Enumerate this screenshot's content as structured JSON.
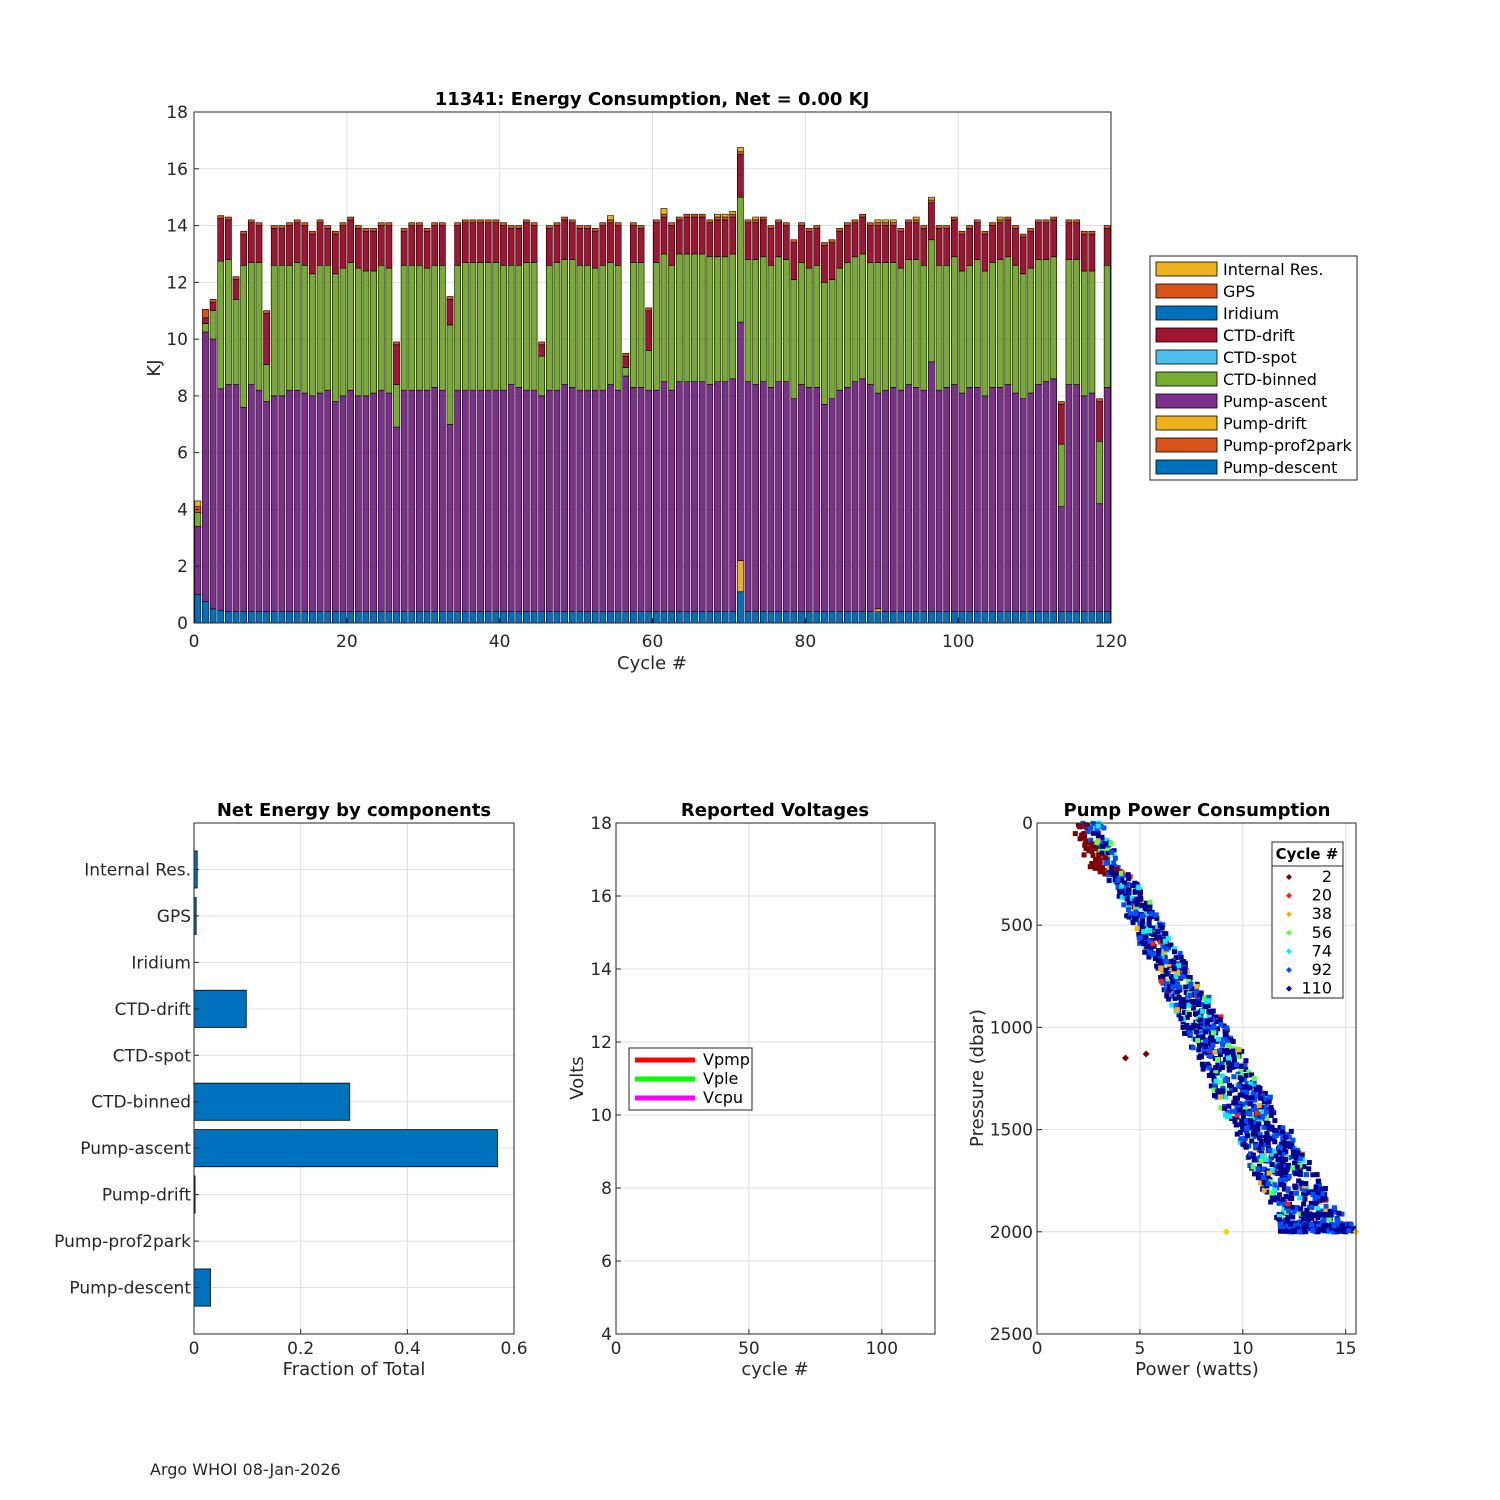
{
  "footer": "Argo WHOI 08-Jan-2026",
  "chart_data": [
    {
      "id": "energy",
      "type": "bar",
      "stacked": true,
      "title": "11341: Energy Consumption,  Net =   0.00 KJ",
      "xlabel": "Cycle #",
      "ylabel": "KJ",
      "xlim": [
        0,
        120
      ],
      "ylim": [
        0,
        18
      ],
      "xticks": [
        0,
        20,
        40,
        60,
        80,
        100,
        120
      ],
      "yticks": [
        0,
        2,
        4,
        6,
        8,
        10,
        12,
        14,
        16,
        18
      ],
      "grid": true,
      "legend_position": "outside-right",
      "legend": [
        {
          "name": "Internal Res.",
          "color": "#EDB120"
        },
        {
          "name": "GPS",
          "color": "#D95319"
        },
        {
          "name": "Iridium",
          "color": "#0072BD"
        },
        {
          "name": "CTD-drift",
          "color": "#A2142F"
        },
        {
          "name": "CTD-spot",
          "color": "#4DBEEE"
        },
        {
          "name": "CTD-binned",
          "color": "#77AC30"
        },
        {
          "name": "Pump-ascent",
          "color": "#7E2F8E"
        },
        {
          "name": "Pump-drift",
          "color": "#EDB120"
        },
        {
          "name": "Pump-prof2park",
          "color": "#D95319"
        },
        {
          "name": "Pump-descent",
          "color": "#0072BD"
        }
      ],
      "stack_order": [
        "Pump-descent",
        "Pump-ascent",
        "CTD-binned",
        "CTD-drift",
        "GPS",
        "Internal Res."
      ],
      "cycles": [
        0,
        1,
        2,
        3,
        4,
        5,
        6,
        7,
        8,
        9,
        10,
        11,
        12,
        13,
        14,
        15,
        16,
        17,
        18,
        19,
        20,
        21,
        22,
        23,
        24,
        25,
        26,
        27,
        28,
        29,
        30,
        31,
        32,
        33,
        34,
        35,
        36,
        37,
        38,
        39,
        40,
        41,
        42,
        43,
        44,
        45,
        46,
        47,
        48,
        49,
        50,
        51,
        52,
        53,
        54,
        55,
        56,
        57,
        58,
        59,
        60,
        61,
        62,
        63,
        64,
        65,
        66,
        67,
        68,
        69,
        70,
        71,
        72,
        73,
        74,
        75,
        76,
        77,
        78,
        79,
        80,
        81,
        82,
        83,
        84,
        85,
        86,
        87,
        88,
        89,
        90,
        91,
        92,
        93,
        94,
        95,
        96,
        97,
        98,
        99,
        100,
        101,
        102,
        103,
        104,
        105,
        106,
        107,
        108,
        109,
        110,
        111,
        112,
        113,
        114,
        115,
        116,
        117,
        118,
        119
      ],
      "pump_descent": [
        1.0,
        0.75,
        0.5,
        0.45,
        0.4,
        0.4,
        0.4,
        0.4,
        0.4,
        0.4,
        0.4,
        0.4,
        0.4,
        0.4,
        0.4,
        0.4,
        0.4,
        0.4,
        0.4,
        0.4,
        0.4,
        0.4,
        0.4,
        0.4,
        0.4,
        0.4,
        0.4,
        0.4,
        0.4,
        0.4,
        0.4,
        0.4,
        0.4,
        0.4,
        0.4,
        0.4,
        0.4,
        0.4,
        0.4,
        0.4,
        0.4,
        0.4,
        0.4,
        0.4,
        0.4,
        0.4,
        0.4,
        0.4,
        0.4,
        0.4,
        0.4,
        0.4,
        0.4,
        0.4,
        0.4,
        0.4,
        0.4,
        0.4,
        0.4,
        0.4,
        0.4,
        0.4,
        0.4,
        0.4,
        0.4,
        0.4,
        0.4,
        0.4,
        0.4,
        0.4,
        0.4,
        1.1,
        0.4,
        0.4,
        0.4,
        0.4,
        0.4,
        0.4,
        0.4,
        0.4,
        0.4,
        0.4,
        0.4,
        0.4,
        0.4,
        0.4,
        0.4,
        0.4,
        0.4,
        0.4,
        0.4,
        0.4,
        0.4,
        0.4,
        0.4,
        0.4,
        0.4,
        0.4,
        0.4,
        0.4,
        0.4,
        0.4,
        0.4,
        0.4,
        0.4,
        0.4,
        0.4,
        0.4,
        0.4,
        0.4,
        0.4,
        0.4,
        0.4,
        0.4,
        0.4,
        0.4,
        0.4,
        0.4,
        0.4,
        0.4
      ],
      "pump_drift": [
        0,
        0,
        0,
        0,
        0,
        0,
        0,
        0,
        0,
        0,
        0,
        0,
        0,
        0,
        0,
        0,
        0,
        0,
        0,
        0,
        0,
        0,
        0,
        0,
        0,
        0,
        0,
        0,
        0,
        0,
        0,
        0,
        0,
        0,
        0,
        0,
        0,
        0,
        0,
        0,
        0,
        0,
        0,
        0,
        0,
        0,
        0,
        0,
        0,
        0,
        0,
        0,
        0,
        0,
        0,
        0,
        0,
        0,
        0,
        0,
        0,
        0,
        0,
        0,
        0,
        0,
        0,
        0,
        0,
        0,
        0,
        1.1,
        0,
        0,
        0,
        0,
        0,
        0,
        0,
        0,
        0,
        0,
        0,
        0,
        0,
        0,
        0,
        0,
        0,
        0.1,
        0,
        0,
        0,
        0,
        0,
        0,
        0,
        0,
        0,
        0,
        0,
        0,
        0,
        0,
        0,
        0,
        0,
        0,
        0,
        0,
        0,
        0,
        0,
        0,
        0,
        0,
        0,
        0,
        0,
        0
      ],
      "pump_ascent": [
        2.4,
        9.5,
        9.5,
        7.8,
        8.0,
        8.0,
        7.2,
        8.0,
        7.8,
        7.4,
        7.6,
        7.6,
        7.8,
        7.8,
        7.7,
        7.6,
        7.7,
        7.8,
        7.4,
        7.6,
        7.8,
        7.6,
        7.6,
        7.7,
        7.8,
        7.7,
        6.5,
        7.8,
        7.8,
        7.8,
        7.8,
        7.9,
        7.8,
        6.6,
        7.8,
        7.8,
        7.8,
        7.8,
        7.8,
        7.8,
        7.8,
        8.0,
        7.9,
        7.8,
        7.8,
        7.6,
        7.8,
        7.8,
        8.0,
        7.9,
        7.8,
        7.8,
        7.8,
        7.8,
        8.0,
        7.8,
        8.3,
        7.9,
        7.9,
        7.8,
        7.8,
        8.1,
        7.8,
        8.1,
        8.1,
        8.1,
        8.1,
        8.0,
        8.1,
        8.1,
        8.2,
        8.4,
        8.1,
        8.0,
        8.1,
        7.9,
        8.1,
        8.1,
        7.5,
        8.0,
        7.9,
        7.9,
        7.3,
        7.5,
        7.8,
        7.9,
        8.1,
        8.2,
        8.0,
        7.6,
        7.8,
        7.9,
        7.8,
        8.0,
        7.9,
        7.8,
        8.8,
        7.8,
        7.9,
        8.0,
        7.7,
        7.9,
        7.9,
        7.6,
        7.9,
        7.9,
        8.0,
        7.7,
        7.5,
        7.7,
        8.0,
        8.1,
        8.2,
        3.7,
        8.0,
        8.0,
        7.6,
        7.7,
        3.8,
        7.9
      ],
      "ctd_binned": [
        0.5,
        0.3,
        1.0,
        4.5,
        4.4,
        3.0,
        5.0,
        4.3,
        4.5,
        1.3,
        4.6,
        4.6,
        4.4,
        4.5,
        4.5,
        4.3,
        4.5,
        4.4,
        4.5,
        4.5,
        4.5,
        4.5,
        4.4,
        4.3,
        4.4,
        4.4,
        1.5,
        4.4,
        4.4,
        4.4,
        4.3,
        4.3,
        4.4,
        3.5,
        4.4,
        4.5,
        4.5,
        4.5,
        4.5,
        4.5,
        4.4,
        4.2,
        4.3,
        4.5,
        4.5,
        1.4,
        4.4,
        4.5,
        4.4,
        4.5,
        4.4,
        4.4,
        4.3,
        4.4,
        4.3,
        4.4,
        0.3,
        4.4,
        4.4,
        1.4,
        4.5,
        4.5,
        4.4,
        4.5,
        4.5,
        4.5,
        4.5,
        4.5,
        4.4,
        4.4,
        4.4,
        4.4,
        4.3,
        4.4,
        4.4,
        4.3,
        4.4,
        4.3,
        4.2,
        4.3,
        4.2,
        4.3,
        4.3,
        4.2,
        4.3,
        4.4,
        4.4,
        4.4,
        4.3,
        4.6,
        4.5,
        4.4,
        4.3,
        4.4,
        4.5,
        4.4,
        4.3,
        4.4,
        4.3,
        4.5,
        4.3,
        4.3,
        4.5,
        4.4,
        4.4,
        4.5,
        4.5,
        4.5,
        4.4,
        4.4,
        4.4,
        4.3,
        4.3,
        2.2,
        4.4,
        4.4,
        4.4,
        4.3,
        2.2,
        4.3
      ],
      "ctd_drift": [
        0.0,
        0.2,
        0.3,
        1.5,
        1.4,
        0.7,
        1.1,
        1.4,
        1.3,
        1.8,
        1.3,
        1.3,
        1.4,
        1.4,
        1.4,
        1.4,
        1.5,
        1.3,
        1.4,
        1.5,
        1.5,
        1.4,
        1.4,
        1.4,
        1.4,
        1.5,
        1.4,
        1.2,
        1.4,
        1.4,
        1.3,
        1.4,
        1.4,
        0.9,
        1.4,
        1.4,
        1.4,
        1.4,
        1.4,
        1.4,
        1.4,
        1.3,
        1.3,
        1.4,
        1.3,
        0.4,
        1.3,
        1.3,
        1.4,
        1.3,
        1.3,
        1.3,
        1.3,
        1.4,
        1.4,
        1.4,
        0.4,
        1.3,
        1.2,
        1.4,
        1.4,
        1.3,
        1.4,
        1.2,
        1.3,
        1.3,
        1.3,
        1.2,
        1.3,
        1.3,
        1.3,
        1.5,
        1.3,
        1.3,
        1.3,
        1.3,
        1.2,
        1.2,
        1.3,
        1.3,
        1.3,
        1.3,
        1.3,
        1.3,
        1.3,
        1.3,
        1.2,
        1.3,
        1.3,
        1.3,
        1.3,
        1.3,
        1.3,
        1.3,
        1.3,
        1.3,
        1.3,
        1.3,
        1.3,
        1.3,
        1.3,
        1.3,
        1.3,
        1.3,
        1.3,
        1.3,
        1.3,
        1.3,
        1.3,
        1.3,
        1.3,
        1.3,
        1.3,
        1.4,
        1.3,
        1.3,
        1.3,
        1.3,
        1.4,
        1.3
      ],
      "gps": [
        0.2,
        0.3,
        0.1,
        0.1,
        0.1,
        0.1,
        0.1,
        0.1,
        0.1,
        0.1,
        0.1,
        0.1,
        0.1,
        0.1,
        0.1,
        0.1,
        0.1,
        0.1,
        0.1,
        0.1,
        0.1,
        0.1,
        0.1,
        0.1,
        0.1,
        0.1,
        0.1,
        0.1,
        0.1,
        0.1,
        0.1,
        0.1,
        0.1,
        0.1,
        0.1,
        0.1,
        0.1,
        0.1,
        0.1,
        0.1,
        0.1,
        0.1,
        0.1,
        0.1,
        0.1,
        0.1,
        0.1,
        0.1,
        0.1,
        0.1,
        0.1,
        0.1,
        0.1,
        0.1,
        0.1,
        0.1,
        0.1,
        0.1,
        0.1,
        0.1,
        0.1,
        0.1,
        0.1,
        0.1,
        0.1,
        0.1,
        0.1,
        0.1,
        0.1,
        0.1,
        0.1,
        0.1,
        0.1,
        0.1,
        0.1,
        0.1,
        0.1,
        0.1,
        0.1,
        0.1,
        0.1,
        0.1,
        0.1,
        0.1,
        0.1,
        0.1,
        0.1,
        0.1,
        0.1,
        0.1,
        0.1,
        0.1,
        0.1,
        0.1,
        0.1,
        0.1,
        0.1,
        0.1,
        0.1,
        0.1,
        0.1,
        0.1,
        0.1,
        0.1,
        0.1,
        0.1,
        0.1,
        0.1,
        0.1,
        0.1,
        0.1,
        0.1,
        0.1,
        0.1,
        0.1,
        0.1,
        0.1,
        0.1,
        0.1,
        0.1
      ],
      "internal_res": [
        0.2,
        0.0,
        0.0,
        0.0,
        0.0,
        0.0,
        0.0,
        0.0,
        0.0,
        0.0,
        0.0,
        0.0,
        0.0,
        0.0,
        0.0,
        0.0,
        0.0,
        0.0,
        0.0,
        0.0,
        0.0,
        0.0,
        0.0,
        0.0,
        0.0,
        0.0,
        0.0,
        0.0,
        0.0,
        0.0,
        0.0,
        0.0,
        0.0,
        0.0,
        0.0,
        0.0,
        0.0,
        0.0,
        0.0,
        0.0,
        0.0,
        0.0,
        0.0,
        0.0,
        0.0,
        0.0,
        0.0,
        0.0,
        0.0,
        0.0,
        0.0,
        0.0,
        0.0,
        0.0,
        0.15,
        0.0,
        0.0,
        0.0,
        0.0,
        0.0,
        0.0,
        0.2,
        0.0,
        0.0,
        0.0,
        0.0,
        0.0,
        0.0,
        0.1,
        0.1,
        0.1,
        0.15,
        0.0,
        0.1,
        0.0,
        0.0,
        0.0,
        0.0,
        0.0,
        0.0,
        0.0,
        0.0,
        0.0,
        0.0,
        0.0,
        0.0,
        0.0,
        0.0,
        0.0,
        0.1,
        0.1,
        0.1,
        0.0,
        0.0,
        0.1,
        0.0,
        0.1,
        0.0,
        0.0,
        0.0,
        0.0,
        0.0,
        0.0,
        0.0,
        0.0,
        0.1,
        0.0,
        0.0,
        0.0,
        0.0,
        0.0,
        0.0,
        0.0,
        0.0,
        0.0,
        0.0,
        0.0,
        0.0,
        0.0,
        0.0
      ]
    },
    {
      "id": "components",
      "type": "bar",
      "orientation": "horizontal",
      "title": "Net Energy by components",
      "xlabel": "Fraction of Total",
      "ylabel": "",
      "xlim": [
        0,
        0.6
      ],
      "xticks": [
        0,
        0.2,
        0.4,
        0.6
      ],
      "xtick_labels": [
        "0",
        "0.2",
        "0.4",
        "0.6"
      ],
      "grid": true,
      "categories": [
        "Internal Res.",
        "GPS",
        "Iridium",
        "CTD-drift",
        "CTD-spot",
        "CTD-binned",
        "Pump-ascent",
        "Pump-drift",
        "Pump-prof2park",
        "Pump-descent"
      ],
      "values": [
        0.006,
        0.004,
        0.0,
        0.098,
        0.0,
        0.292,
        0.569,
        0.002,
        0.0,
        0.031
      ],
      "color": "#0072BD"
    },
    {
      "id": "voltages",
      "type": "line",
      "title": "Reported Voltages",
      "xlabel": "cycle #",
      "ylabel": "Volts",
      "xlim": [
        0,
        120
      ],
      "ylim": [
        4,
        18
      ],
      "xticks": [
        0,
        50,
        100
      ],
      "yticks": [
        4,
        6,
        8,
        10,
        12,
        14,
        16,
        18
      ],
      "grid": true,
      "legend_position": "middle-left",
      "series": [
        {
          "name": "Vpmp",
          "color": "#FF0000",
          "values": []
        },
        {
          "name": "Vple",
          "color": "#00FF00",
          "values": []
        },
        {
          "name": "Vcpu",
          "color": "#FF00FF",
          "values": []
        }
      ]
    },
    {
      "id": "pump",
      "type": "scatter",
      "title": "Pump Power Consumption",
      "xlabel": "Power (watts)",
      "ylabel": "Pressure (dbar)",
      "xlim": [
        0,
        15.5
      ],
      "ylim": [
        0,
        2500
      ],
      "y_reversed": true,
      "xticks": [
        0,
        5,
        10,
        15
      ],
      "yticks": [
        0,
        500,
        1000,
        1500,
        2000,
        2500
      ],
      "grid": true,
      "legend_title": "Cycle #",
      "legend_position": "top-right",
      "legend": [
        {
          "label": "2",
          "color": "#800000"
        },
        {
          "label": "20",
          "color": "#FF2000"
        },
        {
          "label": "38",
          "color": "#FFB000"
        },
        {
          "label": "56",
          "color": "#60FF40"
        },
        {
          "label": "74",
          "color": "#00F0FF"
        },
        {
          "label": "92",
          "color": "#0050FF"
        },
        {
          "label": "110",
          "color": "#00008F"
        }
      ],
      "trend_start": [
        2.6,
        0
      ],
      "trend_end": [
        13.6,
        2000
      ],
      "outliers": [
        {
          "x": 4.3,
          "y": 1150,
          "color": "#800000"
        },
        {
          "x": 5.3,
          "y": 1130,
          "color": "#800000"
        },
        {
          "x": 9.2,
          "y": 2000,
          "color": "#FFD000"
        },
        {
          "x": 15.5,
          "y": 2000,
          "color": "#FFD000"
        }
      ]
    }
  ]
}
